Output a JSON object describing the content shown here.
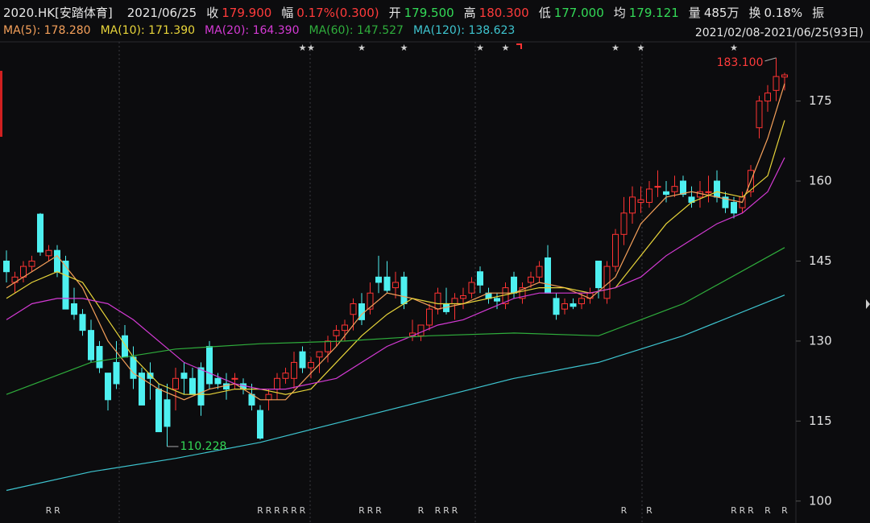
{
  "chart_data": {
    "type": "candlestick",
    "title": "2020.HK[安踏体育]",
    "date": "2021/06/25",
    "quote": [
      {
        "label": "收",
        "value": "179.900",
        "color": "#ff3b3b"
      },
      {
        "label": "幅",
        "value": "0.17%(0.300)",
        "color": "#ff3b3b"
      },
      {
        "label": "开",
        "value": "179.500",
        "color": "#33d957"
      },
      {
        "label": "高",
        "value": "180.300",
        "color": "#ff3b3b"
      },
      {
        "label": "低",
        "value": "177.000",
        "color": "#33d957"
      },
      {
        "label": "均",
        "value": "179.121",
        "color": "#33d957"
      },
      {
        "label": "量",
        "value": "485万",
        "color": "#e6e6e6"
      },
      {
        "label": "换",
        "value": "0.18%",
        "color": "#e6e6e6"
      },
      {
        "label": "振",
        "value": "",
        "color": "#e6e6e6"
      }
    ],
    "range": "2021/02/08-2021/06/25(93日)",
    "ylim": [
      97.4,
      186.1
    ],
    "yticks": [
      100,
      115,
      130,
      145,
      160,
      175
    ],
    "grid": false,
    "up_color": "#ff3333",
    "down_color": "#4ef0f0",
    "ohlc": [
      [
        145,
        147,
        141,
        143
      ],
      [
        141,
        143,
        139,
        142
      ],
      [
        142,
        145,
        141,
        144
      ],
      [
        144,
        146,
        143,
        145
      ],
      [
        153.8,
        154,
        146,
        146.7
      ],
      [
        146,
        148,
        145,
        147
      ],
      [
        147,
        148,
        142,
        143
      ],
      [
        145,
        146,
        136,
        136
      ],
      [
        137,
        140,
        134,
        135
      ],
      [
        135,
        136,
        131,
        132
      ],
      [
        132,
        134,
        126,
        126.5
      ],
      [
        129,
        130,
        124,
        125
      ],
      [
        124,
        124,
        117,
        119
      ],
      [
        126,
        130,
        121,
        122
      ],
      [
        131,
        133,
        127,
        127
      ],
      [
        127,
        129,
        121,
        123
      ],
      [
        124,
        125,
        118,
        118
      ],
      [
        124,
        126,
        119,
        123
      ],
      [
        121,
        122,
        113,
        113
      ],
      [
        119,
        122,
        110.228,
        114
      ],
      [
        121,
        125,
        117,
        123
      ],
      [
        124,
        126,
        120,
        123
      ],
      [
        123,
        125,
        120,
        120
      ],
      [
        125,
        126,
        116,
        118
      ],
      [
        129,
        130,
        121,
        122
      ],
      [
        123,
        124,
        121,
        122
      ],
      [
        122,
        124,
        119,
        121
      ],
      [
        123,
        124,
        121,
        123
      ],
      [
        122,
        123,
        120,
        121
      ],
      [
        120,
        122,
        117,
        118
      ],
      [
        117,
        118,
        111.5,
        111.8
      ],
      [
        119,
        121,
        117,
        120
      ],
      [
        121,
        124,
        119,
        123
      ],
      [
        123,
        125,
        122,
        124
      ],
      [
        123,
        128,
        121,
        126
      ],
      [
        128,
        129,
        124,
        125
      ],
      [
        125,
        127,
        123,
        126
      ],
      [
        127,
        128,
        124,
        128
      ],
      [
        128,
        131,
        126,
        130
      ],
      [
        131,
        133,
        129,
        132
      ],
      [
        132,
        134,
        130,
        133
      ],
      [
        135,
        138,
        132,
        137
      ],
      [
        137,
        139,
        133,
        134
      ],
      [
        136,
        141,
        135,
        139
      ],
      [
        142,
        146,
        139,
        141
      ],
      [
        142,
        145,
        139,
        139.5
      ],
      [
        140,
        143,
        138,
        141
      ],
      [
        142,
        143,
        136,
        137
      ],
      [
        131,
        134,
        130,
        131.5
      ],
      [
        131,
        133,
        130,
        133
      ],
      [
        133,
        137,
        132,
        136
      ],
      [
        136,
        140,
        135,
        139
      ],
      [
        137,
        140,
        135,
        135.5
      ],
      [
        137,
        139,
        134,
        138
      ],
      [
        138,
        140,
        136,
        138.5
      ],
      [
        139,
        142,
        138,
        141
      ],
      [
        143,
        144,
        139,
        140.5
      ],
      [
        139,
        140,
        137,
        138
      ],
      [
        138,
        139,
        136,
        137.5
      ],
      [
        137,
        141,
        136,
        140
      ],
      [
        142,
        143,
        138,
        139
      ],
      [
        138,
        141,
        137,
        140
      ],
      [
        141,
        143,
        140,
        142
      ],
      [
        142,
        145,
        141,
        144
      ],
      [
        145.6,
        148,
        139,
        139
      ],
      [
        138,
        139,
        134,
        135
      ],
      [
        136,
        138,
        135,
        137
      ],
      [
        137,
        138,
        136,
        136.5
      ],
      [
        137,
        139,
        136,
        138
      ],
      [
        138,
        140,
        137,
        139
      ],
      [
        145,
        145,
        138,
        140
      ],
      [
        138,
        145,
        137,
        144
      ],
      [
        144,
        151,
        143,
        150
      ],
      [
        150,
        157,
        148,
        154
      ],
      [
        154,
        159,
        152,
        157
      ],
      [
        156,
        159,
        154,
        156.5
      ],
      [
        156,
        160,
        155,
        158.5
      ],
      [
        159,
        162,
        157,
        159
      ],
      [
        158,
        160,
        156,
        157.5
      ],
      [
        158,
        161,
        157,
        159
      ],
      [
        160,
        161,
        157,
        157.5
      ],
      [
        157,
        159,
        155,
        156
      ],
      [
        157,
        160,
        155,
        158
      ],
      [
        158,
        161,
        156,
        158
      ],
      [
        160,
        162,
        156,
        157
      ],
      [
        157,
        158,
        154,
        155
      ],
      [
        156,
        157,
        153,
        154
      ],
      [
        155,
        158,
        154,
        157
      ],
      [
        158,
        163,
        157,
        162
      ],
      [
        170,
        176,
        168,
        175
      ],
      [
        175,
        178,
        173,
        176.5
      ],
      [
        177,
        183.1,
        175,
        179.6
      ],
      [
        179.5,
        180.3,
        177,
        179.9
      ]
    ],
    "series": [
      {
        "name": "MA(5): 178.280",
        "color": "#f5a05a",
        "x": [
          0,
          3,
          6,
          9,
          12,
          15,
          18,
          21,
          24,
          27,
          30,
          33,
          36,
          39,
          42,
          45,
          48,
          51,
          54,
          57,
          60,
          63,
          66,
          69,
          72,
          75,
          78,
          81,
          84,
          87,
          90,
          92
        ],
        "values": [
          140,
          143,
          146,
          140,
          130,
          124,
          121,
          119,
          121,
          122,
          119,
          119,
          124,
          129,
          135,
          139,
          138,
          136,
          137,
          139,
          139,
          141,
          140,
          138,
          142,
          152,
          157,
          158,
          157,
          156,
          168,
          178.28
        ]
      },
      {
        "name": "MA(10): 171.390",
        "color": "#e8d53a",
        "x": [
          0,
          3,
          6,
          9,
          12,
          15,
          18,
          21,
          24,
          27,
          30,
          33,
          36,
          39,
          42,
          45,
          48,
          51,
          54,
          57,
          60,
          63,
          66,
          69,
          72,
          75,
          78,
          81,
          84,
          87,
          90,
          92
        ],
        "values": [
          138,
          141,
          143,
          141,
          134,
          127,
          122,
          120,
          120,
          121,
          121,
          120,
          121,
          126,
          131,
          135,
          138,
          137,
          137,
          138,
          139,
          140,
          140,
          139,
          140,
          146,
          152,
          156,
          158,
          157,
          161,
          171.39
        ]
      },
      {
        "name": "MA(20): 164.390",
        "color": "#d43ad4",
        "x": [
          0,
          3,
          6,
          9,
          12,
          15,
          18,
          21,
          24,
          27,
          30,
          33,
          36,
          39,
          42,
          45,
          48,
          51,
          54,
          57,
          60,
          63,
          66,
          69,
          72,
          75,
          78,
          81,
          84,
          87,
          90,
          92
        ],
        "values": [
          134,
          137,
          138,
          138,
          137,
          134,
          130,
          126,
          124,
          122,
          121,
          121,
          122,
          123,
          126,
          129,
          131,
          133,
          134,
          136,
          138,
          139,
          139,
          139,
          140,
          142,
          146,
          149,
          152,
          154,
          158,
          164.39
        ]
      },
      {
        "name": "MA(60): 147.527",
        "color": "#2fae3c",
        "x": [
          0,
          10,
          20,
          30,
          40,
          50,
          60,
          70,
          80,
          92
        ],
        "values": [
          120,
          126,
          128.5,
          129.5,
          130,
          131,
          131.5,
          131,
          137,
          147.527
        ]
      },
      {
        "name": "MA(120): 138.623",
        "color": "#3ec5d0",
        "x": [
          0,
          10,
          20,
          30,
          40,
          50,
          60,
          70,
          80,
          92
        ],
        "values": [
          102,
          105.5,
          108,
          111,
          115,
          119,
          123,
          126,
          131,
          138.623
        ]
      }
    ],
    "annotations": [
      {
        "index": 91,
        "value": 183.1,
        "label": "183.100",
        "color": "#ff3b3b",
        "side": "left"
      },
      {
        "index": 19,
        "value": 110.228,
        "label": "110.228",
        "color": "#33d957",
        "side": "right"
      }
    ],
    "stars": [
      {
        "index": 35,
        "label": "★"
      },
      {
        "index": 36,
        "label": "★"
      },
      {
        "index": 42,
        "label": "★"
      },
      {
        "index": 47,
        "label": "★"
      },
      {
        "index": 56,
        "label": "★"
      },
      {
        "index": 59,
        "label": "★"
      },
      {
        "index": 72,
        "label": "★"
      },
      {
        "index": 75,
        "label": "★"
      },
      {
        "index": 86,
        "label": "★"
      }
    ],
    "r_marks": [
      {
        "index": 5,
        "label": "R"
      },
      {
        "index": 6,
        "label": "R"
      },
      {
        "index": 30,
        "label": "R"
      },
      {
        "index": 31,
        "label": "R"
      },
      {
        "index": 32,
        "label": "R"
      },
      {
        "index": 33,
        "label": "R"
      },
      {
        "index": 34,
        "label": "R"
      },
      {
        "index": 35,
        "label": "R"
      },
      {
        "index": 42,
        "label": "R"
      },
      {
        "index": 43,
        "label": "R"
      },
      {
        "index": 44,
        "label": "R"
      },
      {
        "index": 49,
        "label": "R"
      },
      {
        "index": 51,
        "label": "R"
      },
      {
        "index": 52,
        "label": "R"
      },
      {
        "index": 53,
        "label": "R"
      },
      {
        "index": 73,
        "label": "R"
      },
      {
        "index": 76,
        "label": "R"
      },
      {
        "index": 86,
        "label": "R"
      },
      {
        "index": 87,
        "label": "R"
      },
      {
        "index": 88,
        "label": "R"
      },
      {
        "index": 90,
        "label": "R"
      },
      {
        "index": 92,
        "label": "R"
      }
    ]
  }
}
